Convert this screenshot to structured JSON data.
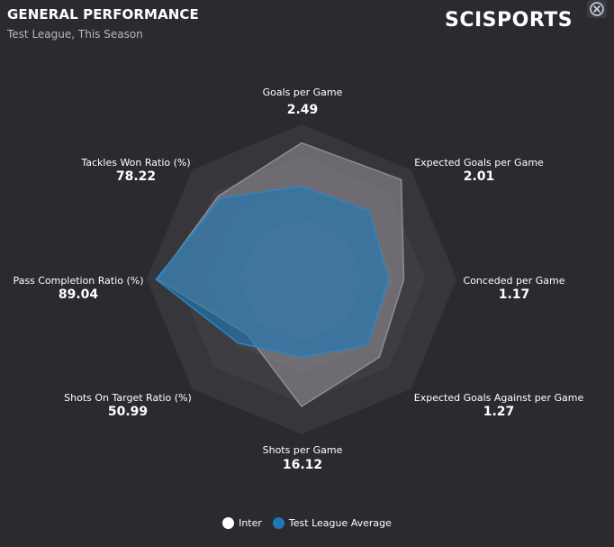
{
  "header": {
    "title": "GENERAL PERFORMANCE",
    "subtitle": "Test League, This Season",
    "logo_text": "SCISPORTS",
    "close_icon": "close-icon"
  },
  "colors": {
    "background": "#2b2a2e",
    "inter_fill": "#7b7a80",
    "league_fill": "#1f78b4",
    "ring_fill": "#3a393e"
  },
  "chart_data": {
    "type": "radar",
    "axes": [
      {
        "label": "Goals per Game",
        "value_label": "2.49"
      },
      {
        "label": "Expected Goals per Game",
        "value_label": "2.01"
      },
      {
        "label": "Conceded per Game",
        "value_label": "1.17"
      },
      {
        "label": "Expected Goals Against per Game",
        "value_label": "1.27"
      },
      {
        "label": "Shots per Game",
        "value_label": "16.12"
      },
      {
        "label": "Shots On Target Ratio (%)",
        "value_label": "50.99"
      },
      {
        "label": "Pass Completion Ratio (%)",
        "value_label": "89.04"
      },
      {
        "label": "Tackles Won Ratio (%)",
        "value_label": "78.22"
      }
    ],
    "series": [
      {
        "name": "Inter",
        "color": "#ffffff",
        "scores": [
          0.88,
          0.91,
          0.66,
          0.71,
          0.82,
          0.5,
          0.93,
          0.76
        ]
      },
      {
        "name": "Test League Average",
        "color": "#1f78b4",
        "scores": [
          0.6,
          0.62,
          0.56,
          0.6,
          0.5,
          0.58,
          0.94,
          0.74
        ]
      }
    ],
    "legend": "bottom"
  }
}
